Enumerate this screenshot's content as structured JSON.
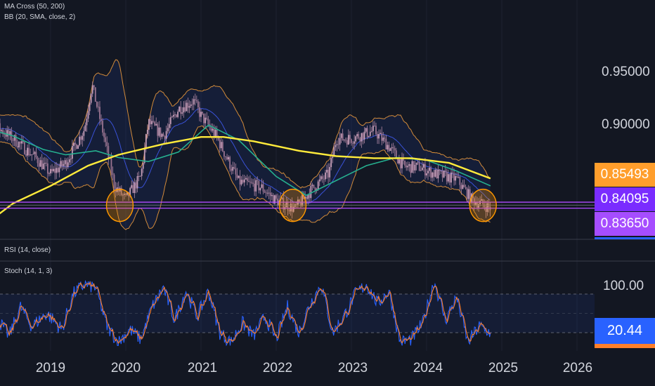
{
  "indicators": {
    "ma": "MA Cross (50, 200)",
    "bb": "BB (20, SMA, close, 2)",
    "rsi": "RSI (14, close)",
    "stoch": "Stoch (14, 1, 3)"
  },
  "price_axis": {
    "ticks": [
      "0.95000",
      "0.90000"
    ]
  },
  "price_labels": [
    {
      "value": "0.85493",
      "color": "#ff9e2c"
    },
    {
      "value": "0.84095",
      "color": "#7a2cff"
    },
    {
      "value": "0.83650",
      "color": "#a64dff"
    }
  ],
  "stoch_axis": {
    "tick": "100.00",
    "last_value": "20.44",
    "last_color": "#2962ff"
  },
  "time_axis": [
    "2019",
    "2020",
    "2021",
    "2022",
    "2023",
    "2024",
    "2025",
    "2026"
  ],
  "colors": {
    "background": "#131722",
    "candle": "#b48aa6",
    "ma50": "#26b08f",
    "ma200": "#ffeb3b",
    "bb_basis": "#3a52d8",
    "bb_band": "#d18a3a",
    "bb_fill": "#2962ff",
    "support": "#b04bff",
    "circle": "#ff9800",
    "stoch_k": "#2962ff",
    "stoch_d": "#ff7f2a"
  },
  "chart_data": {
    "type": "candlestick",
    "price_panel": {
      "ylim": [
        0.815,
        0.975
      ],
      "horizontal_levels": [
        0.84095,
        0.8365
      ],
      "highlighted_lows": [
        "2019-11",
        "2022-03",
        "2024-09"
      ],
      "ma200": [
        {
          "t": 2018.0,
          "v": 0.819
        },
        {
          "t": 2018.5,
          "v": 0.84
        },
        {
          "t": 2019.0,
          "v": 0.853
        },
        {
          "t": 2019.5,
          "v": 0.868
        },
        {
          "t": 2019.9,
          "v": 0.876
        },
        {
          "t": 2020.5,
          "v": 0.884
        },
        {
          "t": 2021.0,
          "v": 0.8892
        },
        {
          "t": 2021.3,
          "v": 0.8892
        },
        {
          "t": 2021.7,
          "v": 0.886
        },
        {
          "t": 2022.3,
          "v": 0.879
        },
        {
          "t": 2022.8,
          "v": 0.875
        },
        {
          "t": 2023.3,
          "v": 0.8735
        },
        {
          "t": 2023.8,
          "v": 0.8735
        },
        {
          "t": 2024.3,
          "v": 0.87
        },
        {
          "t": 2024.85,
          "v": 0.8585
        }
      ],
      "ma50": [
        {
          "t": 2018.0,
          "v": 0.898
        },
        {
          "t": 2018.5,
          "v": 0.89
        },
        {
          "t": 2018.9,
          "v": 0.88
        },
        {
          "t": 2019.2,
          "v": 0.876
        },
        {
          "t": 2019.6,
          "v": 0.879
        },
        {
          "t": 2019.9,
          "v": 0.874
        },
        {
          "t": 2020.3,
          "v": 0.871
        },
        {
          "t": 2020.7,
          "v": 0.878
        },
        {
          "t": 2021.1,
          "v": 0.898
        },
        {
          "t": 2021.5,
          "v": 0.887
        },
        {
          "t": 2022.0,
          "v": 0.86
        },
        {
          "t": 2022.4,
          "v": 0.846
        },
        {
          "t": 2022.8,
          "v": 0.857
        },
        {
          "t": 2023.2,
          "v": 0.868
        },
        {
          "t": 2023.6,
          "v": 0.874
        },
        {
          "t": 2024.0,
          "v": 0.872
        },
        {
          "t": 2024.4,
          "v": 0.864
        },
        {
          "t": 2024.85,
          "v": 0.853
        }
      ],
      "close_path": [
        {
          "t": 2018.0,
          "v": 0.895
        },
        {
          "t": 2018.3,
          "v": 0.896
        },
        {
          "t": 2018.5,
          "v": 0.888
        },
        {
          "t": 2018.8,
          "v": 0.874
        },
        {
          "t": 2019.0,
          "v": 0.862
        },
        {
          "t": 2019.2,
          "v": 0.87
        },
        {
          "t": 2019.45,
          "v": 0.895
        },
        {
          "t": 2019.55,
          "v": 0.928
        },
        {
          "t": 2019.7,
          "v": 0.892
        },
        {
          "t": 2019.85,
          "v": 0.853
        },
        {
          "t": 2020.0,
          "v": 0.843
        },
        {
          "t": 2020.2,
          "v": 0.86
        },
        {
          "t": 2020.3,
          "v": 0.9
        },
        {
          "t": 2020.5,
          "v": 0.89
        },
        {
          "t": 2020.7,
          "v": 0.91
        },
        {
          "t": 2020.9,
          "v": 0.916
        },
        {
          "t": 2021.0,
          "v": 0.905
        },
        {
          "t": 2021.2,
          "v": 0.89
        },
        {
          "t": 2021.5,
          "v": 0.856
        },
        {
          "t": 2021.8,
          "v": 0.852
        },
        {
          "t": 2022.0,
          "v": 0.842
        },
        {
          "t": 2022.25,
          "v": 0.836
        },
        {
          "t": 2022.5,
          "v": 0.852
        },
        {
          "t": 2022.7,
          "v": 0.862
        },
        {
          "t": 2022.8,
          "v": 0.888
        },
        {
          "t": 2023.0,
          "v": 0.888
        },
        {
          "t": 2023.3,
          "v": 0.894
        },
        {
          "t": 2023.5,
          "v": 0.882
        },
        {
          "t": 2023.7,
          "v": 0.867
        },
        {
          "t": 2023.9,
          "v": 0.867
        },
        {
          "t": 2024.1,
          "v": 0.862
        },
        {
          "t": 2024.4,
          "v": 0.858
        },
        {
          "t": 2024.6,
          "v": 0.843
        },
        {
          "t": 2024.85,
          "v": 0.8365
        }
      ]
    },
    "stochastic": {
      "name": "Stoch (14, 1, 3)",
      "ylim": [
        0,
        100
      ],
      "bands": [
        80,
        50,
        20
      ],
      "last": 20.44,
      "k_path": [
        {
          "t": 2018.0,
          "v": 30
        },
        {
          "t": 2018.15,
          "v": 85
        },
        {
          "t": 2018.3,
          "v": 40
        },
        {
          "t": 2018.45,
          "v": 15
        },
        {
          "t": 2018.6,
          "v": 60
        },
        {
          "t": 2018.75,
          "v": 30
        },
        {
          "t": 2018.95,
          "v": 50
        },
        {
          "t": 2019.15,
          "v": 25
        },
        {
          "t": 2019.3,
          "v": 80
        },
        {
          "t": 2019.45,
          "v": 95
        },
        {
          "t": 2019.6,
          "v": 90
        },
        {
          "t": 2019.75,
          "v": 30
        },
        {
          "t": 2019.9,
          "v": 5
        },
        {
          "t": 2020.05,
          "v": 25
        },
        {
          "t": 2020.2,
          "v": 10
        },
        {
          "t": 2020.35,
          "v": 60
        },
        {
          "t": 2020.5,
          "v": 90
        },
        {
          "t": 2020.65,
          "v": 40
        },
        {
          "t": 2020.8,
          "v": 85
        },
        {
          "t": 2020.95,
          "v": 45
        },
        {
          "t": 2021.1,
          "v": 85
        },
        {
          "t": 2021.25,
          "v": 20
        },
        {
          "t": 2021.4,
          "v": 5
        },
        {
          "t": 2021.55,
          "v": 35
        },
        {
          "t": 2021.7,
          "v": 15
        },
        {
          "t": 2021.85,
          "v": 45
        },
        {
          "t": 2022.0,
          "v": 10
        },
        {
          "t": 2022.15,
          "v": 60
        },
        {
          "t": 2022.3,
          "v": 20
        },
        {
          "t": 2022.45,
          "v": 65
        },
        {
          "t": 2022.6,
          "v": 95
        },
        {
          "t": 2022.75,
          "v": 20
        },
        {
          "t": 2022.9,
          "v": 45
        },
        {
          "t": 2023.05,
          "v": 80
        },
        {
          "t": 2023.2,
          "v": 95
        },
        {
          "t": 2023.35,
          "v": 65
        },
        {
          "t": 2023.5,
          "v": 85
        },
        {
          "t": 2023.65,
          "v": 5
        },
        {
          "t": 2023.8,
          "v": 10
        },
        {
          "t": 2023.95,
          "v": 35
        },
        {
          "t": 2024.1,
          "v": 100
        },
        {
          "t": 2024.25,
          "v": 40
        },
        {
          "t": 2024.4,
          "v": 75
        },
        {
          "t": 2024.55,
          "v": 5
        },
        {
          "t": 2024.7,
          "v": 30
        },
        {
          "t": 2024.85,
          "v": 20
        }
      ]
    }
  }
}
